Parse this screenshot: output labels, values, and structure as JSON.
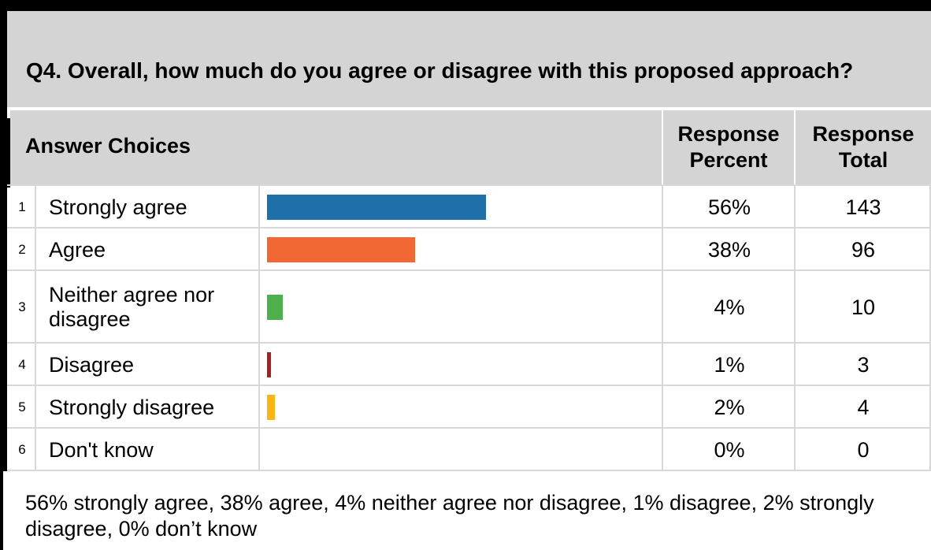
{
  "question": "Q4. Overall, how much do you agree or disagree with this proposed approach?",
  "headers": {
    "answer_choices": "Answer Choices",
    "percent_line1": "Response",
    "percent_line2": "Percent",
    "total_line1": "Response",
    "total_line2": "Total"
  },
  "colors": {
    "header_bg": "#d4d4d4",
    "bar_strongly_agree": "#1f6fa8",
    "bar_agree": "#f26835",
    "bar_neither": "#4db04d",
    "bar_disagree": "#aa2020",
    "bar_strongly_disagree": "#f8b714"
  },
  "chart_data": {
    "type": "bar",
    "categories": [
      "Strongly agree",
      "Agree",
      "Neither agree nor disagree",
      "Disagree",
      "Strongly disagree",
      "Don't know"
    ],
    "values": [
      56,
      38,
      4,
      1,
      2,
      0
    ],
    "rows": [
      {
        "num": "1",
        "label": "Strongly agree",
        "percent": "56%",
        "total": "143",
        "value": 56,
        "color": "#1f6fa8"
      },
      {
        "num": "2",
        "label": "Agree",
        "percent": "38%",
        "total": "96",
        "value": 38,
        "color": "#f26835"
      },
      {
        "num": "3",
        "label": "Neither agree nor disagree",
        "percent": "4%",
        "total": "10",
        "value": 4,
        "color": "#4db04d"
      },
      {
        "num": "4",
        "label": "Disagree",
        "percent": "1%",
        "total": "3",
        "value": 1,
        "color": "#aa2020"
      },
      {
        "num": "5",
        "label": "Strongly disagree",
        "percent": "2%",
        "total": "4",
        "value": 2,
        "color": "#f8b714"
      },
      {
        "num": "6",
        "label": "Don't know",
        "percent": "0%",
        "total": "0",
        "value": 0,
        "color": "#cccccc"
      }
    ],
    "ylim": [
      0,
      100
    ]
  },
  "summary": "56% strongly agree, 38% agree, 4% neither agree nor disagree, 1% disagree, 2% strongly disagree, 0% don’t know"
}
